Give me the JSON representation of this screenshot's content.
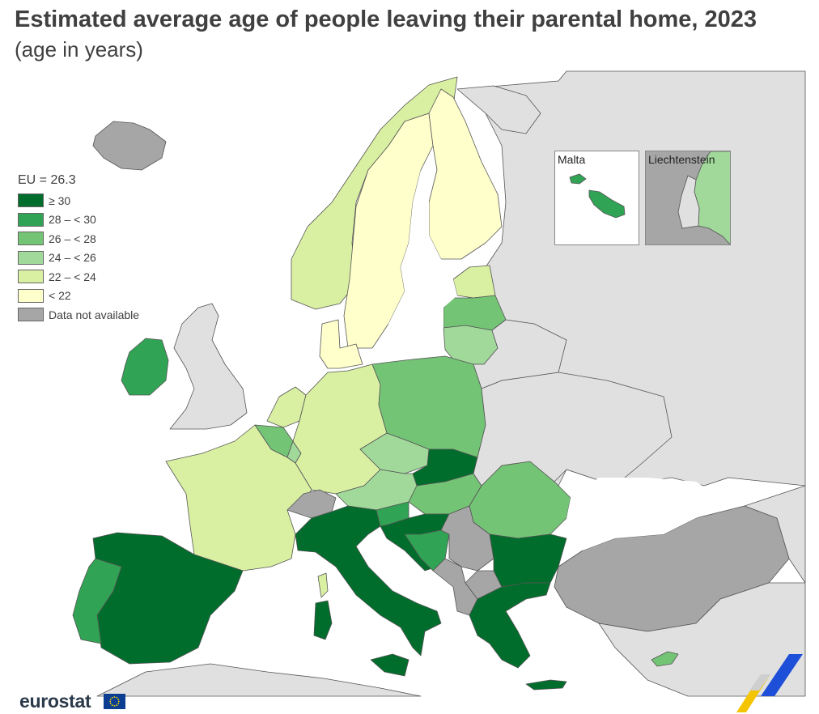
{
  "title": "Estimated average age of people leaving their parental home, 2023",
  "subtitle": "(age in years)",
  "legend": {
    "eu_value": "EU = 26.3",
    "classes": [
      {
        "label": "≥ 30",
        "color": "#006d2c"
      },
      {
        "label": "28 – < 30",
        "color": "#31a354"
      },
      {
        "label": "26 – < 28",
        "color": "#74c476"
      },
      {
        "label": "24 – < 26",
        "color": "#a1d99b"
      },
      {
        "label": "22 – < 24",
        "color": "#d9f0a3"
      },
      {
        "label": "< 22",
        "color": "#ffffcc"
      },
      {
        "label": "Data not available",
        "color": "#a6a6a6"
      }
    ]
  },
  "insets": {
    "malta": "Malta",
    "liechtenstein": "Liechtenstein"
  },
  "colors": {
    "non_eu": "#e0e0e0",
    "sea": "#ffffff",
    "border": "#555555"
  },
  "logo": "eurostat"
}
